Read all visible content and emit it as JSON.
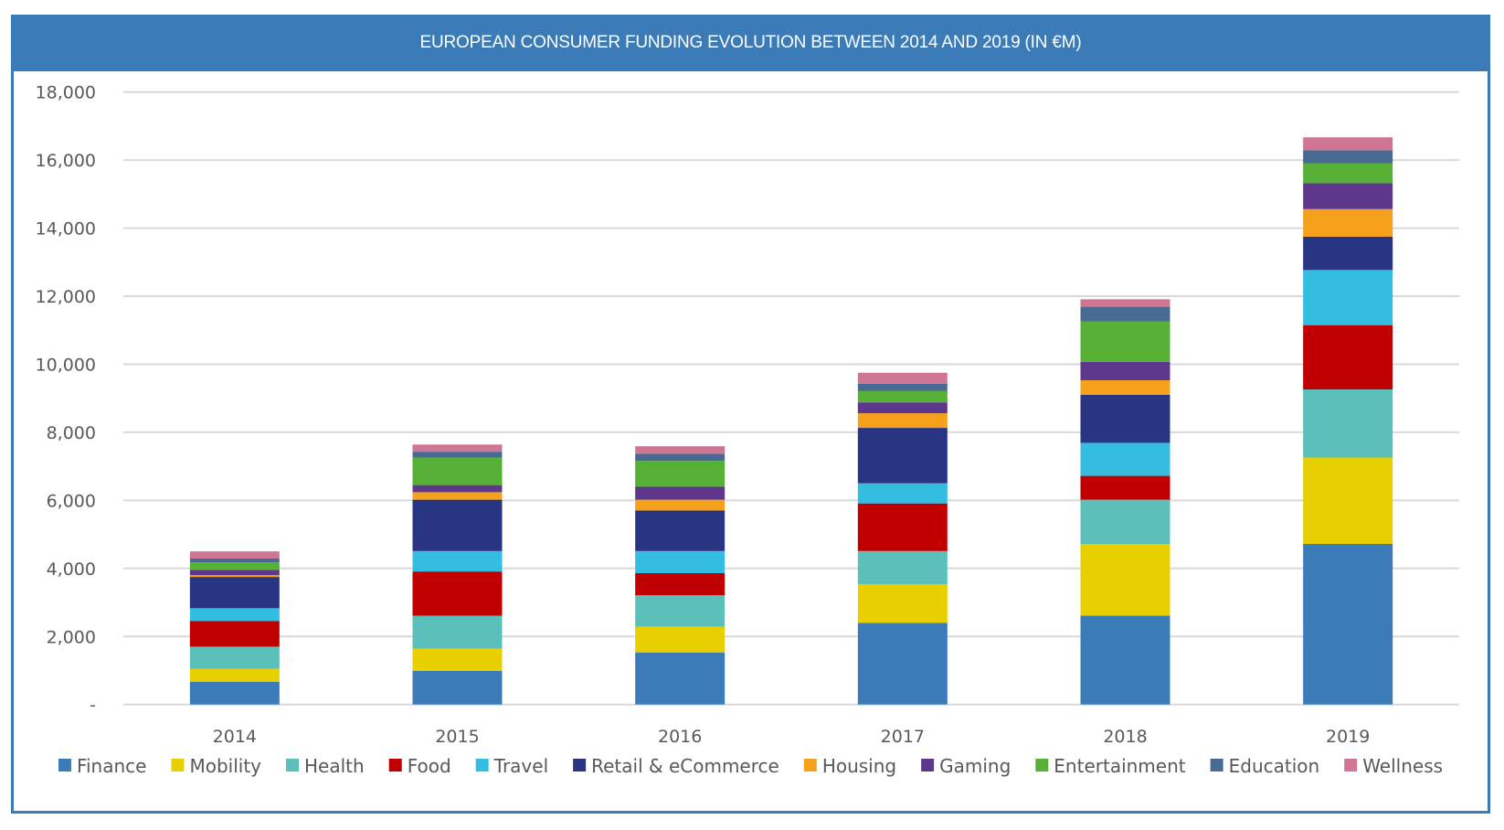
{
  "chart_data": {
    "type": "bar",
    "stacked": true,
    "title": "EUROPEAN CONSUMER FUNDING EVOLUTION BETWEEN 2014 AND 2019 (IN €M)",
    "xlabel": "",
    "ylabel": "",
    "ylim": [
      0,
      18000
    ],
    "yticks": [
      0,
      2000,
      4000,
      6000,
      8000,
      10000,
      12000,
      14000,
      16000,
      18000
    ],
    "ytick_labels": [
      "-",
      "2,000",
      "4,000",
      "6,000",
      "8,000",
      "10,000",
      "12,000",
      "14,000",
      "16,000",
      "18,000"
    ],
    "grid": true,
    "legend_position": "bottom",
    "categories": [
      "2014",
      "2015",
      "2016",
      "2017",
      "2018",
      "2019"
    ],
    "series": [
      {
        "name": "Finance",
        "color": "#3a7bb8",
        "values": [
          670,
          990,
          1530,
          2400,
          2610,
          4720
        ]
      },
      {
        "name": "Mobility",
        "color": "#e8cf00",
        "values": [
          380,
          650,
          760,
          1130,
          2110,
          2540
        ]
      },
      {
        "name": "Health",
        "color": "#5bbfba",
        "values": [
          650,
          970,
          920,
          980,
          1300,
          2000
        ]
      },
      {
        "name": "Food",
        "color": "#c00000",
        "values": [
          750,
          1300,
          650,
          1400,
          700,
          1890
        ]
      },
      {
        "name": "Travel",
        "color": "#33bde0",
        "values": [
          380,
          600,
          650,
          590,
          970,
          1620
        ]
      },
      {
        "name": "Retail & eCommerce",
        "color": "#283583",
        "values": [
          920,
          1510,
          1190,
          1630,
          1410,
          980
        ]
      },
      {
        "name": "Housing",
        "color": "#f5a11c",
        "values": [
          50,
          220,
          320,
          430,
          430,
          810
        ]
      },
      {
        "name": "Gaming",
        "color": "#5e378c",
        "values": [
          160,
          210,
          380,
          320,
          540,
          760
        ]
      },
      {
        "name": "Entertainment",
        "color": "#56b036",
        "values": [
          220,
          810,
          760,
          330,
          1190,
          590
        ]
      },
      {
        "name": "Education",
        "color": "#486a92",
        "values": [
          110,
          170,
          210,
          220,
          430,
          380
        ]
      },
      {
        "name": "Wellness",
        "color": "#cf7696",
        "values": [
          210,
          210,
          220,
          320,
          220,
          380
        ]
      }
    ]
  },
  "colors": {
    "frame": "#3a7bb8",
    "title_text": "#ffffff",
    "gridline": "#d9d9d9",
    "axis_text": "#595959"
  }
}
